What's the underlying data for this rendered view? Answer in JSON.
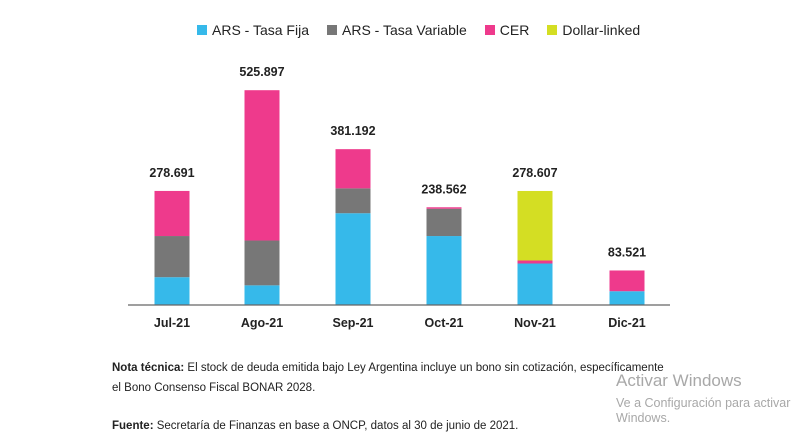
{
  "chart_data": {
    "type": "bar",
    "stacked": true,
    "categories": [
      "Jul-21",
      "Ago-21",
      "Sep-21",
      "Oct-21",
      "Nov-21",
      "Dic-21"
    ],
    "series": [
      {
        "name": "ARS - Tasa Fija",
        "color": "#36b9ea",
        "values": [
          67,
          47,
          224,
          168,
          100.6,
          32.6
        ]
      },
      {
        "name": "ARS - Tasa Variable",
        "color": "#777777",
        "values": [
          101,
          110,
          61,
          67,
          0,
          0
        ]
      },
      {
        "name": "CER",
        "color": "#ee3a8c",
        "values": [
          110.7,
          368.9,
          96.2,
          3.6,
          7.4,
          50.9
        ]
      },
      {
        "name": "Dollar-linked",
        "color": "#d4de23",
        "values": [
          0,
          0,
          0,
          0,
          170.6,
          0
        ]
      }
    ],
    "totals": [
      "278.691",
      "525.897",
      "381.192",
      "238.562",
      "278.607",
      "83.521"
    ],
    "legend_position": "top",
    "grid": false,
    "ylim": [
      0,
      540
    ]
  },
  "notes": {
    "tech_label": "Nota técnica:",
    "tech_line1": " El stock de deuda emitida bajo Ley Argentina incluye un bono sin cotización, específicamente",
    "tech_line2": "el Bono Consenso Fiscal BONAR 2028.",
    "source_label": "Fuente:",
    "source_text": " Secretaría de Finanzas en base a ONCP, datos al 30 de junio de 2021."
  },
  "watermark": {
    "title": "Activar Windows",
    "subtitle": "Ve a Configuración para activar Windows."
  }
}
